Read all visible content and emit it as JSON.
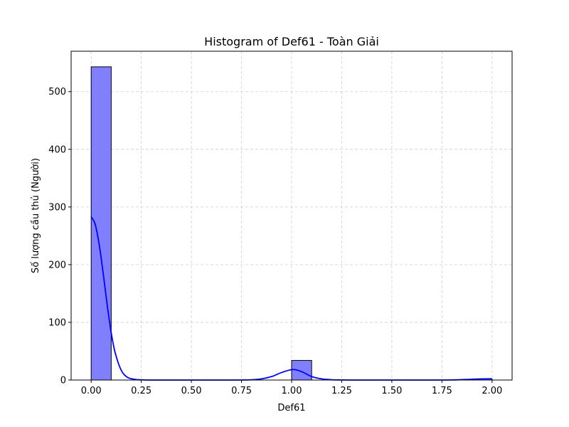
{
  "chart_data": {
    "type": "bar",
    "title": "Histogram of Def61 - Toàn Giải",
    "xlabel": "Def61",
    "ylabel": "Số lượng cầu thủ (Người)",
    "xlim": [
      -0.1,
      2.1
    ],
    "ylim": [
      0,
      570
    ],
    "x_ticks": [
      "0.00",
      "0.25",
      "0.50",
      "0.75",
      "1.00",
      "1.25",
      "1.50",
      "1.75",
      "2.00"
    ],
    "y_ticks": [
      "0",
      "100",
      "200",
      "300",
      "400",
      "500"
    ],
    "grid": true,
    "bar_color": "#8080ff",
    "bar_edge_color": "#000000",
    "kde_color": "#0000ff",
    "bins": [
      {
        "x0": 0.0,
        "x1": 0.1,
        "count": 543
      },
      {
        "x0": 1.0,
        "x1": 1.1,
        "count": 34
      },
      {
        "x0": 1.9,
        "x1": 2.0,
        "count": 2
      }
    ],
    "kde": {
      "x": [
        0.0,
        0.02,
        0.04,
        0.06,
        0.08,
        0.1,
        0.12,
        0.15,
        0.18,
        0.22,
        0.26,
        0.3,
        0.5,
        0.7,
        0.8,
        0.85,
        0.9,
        0.95,
        1.0,
        1.03,
        1.06,
        1.1,
        1.15,
        1.2,
        1.25,
        1.3,
        1.5,
        1.7,
        1.8,
        1.9,
        1.95,
        2.0
      ],
      "y": [
        283,
        270,
        235,
        185,
        130,
        82,
        47,
        17,
        5,
        1,
        0.3,
        0,
        0,
        0,
        0.5,
        2,
        6,
        13,
        18,
        17,
        13,
        6,
        2,
        0.5,
        0.2,
        0,
        0,
        0,
        0.2,
        1.2,
        2.0,
        2.2
      ]
    }
  }
}
